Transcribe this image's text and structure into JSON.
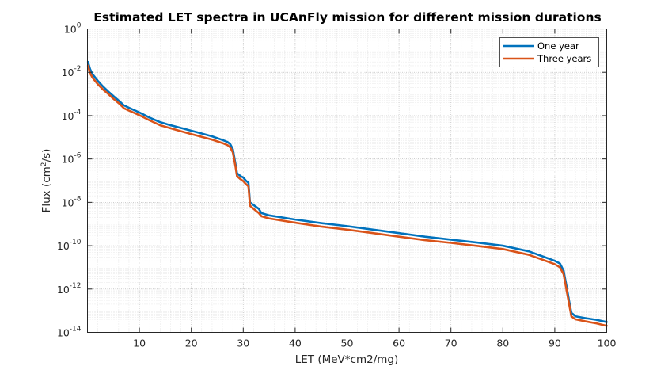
{
  "chart_data": {
    "type": "line",
    "title": "Estimated LET spectra in UCAnFly mission for different mission durations",
    "xlabel": "LET (MeV*cm2/mg)",
    "ylabel_main": "Flux (cm",
    "ylabel_sup": "2",
    "ylabel_tail": "/s)",
    "xlim": [
      0,
      100
    ],
    "ylim": [
      1e-14,
      1
    ],
    "yscale": "log",
    "grid": true,
    "legend_position": "top-right",
    "x_ticks": [
      10,
      20,
      30,
      40,
      50,
      60,
      70,
      80,
      90,
      100
    ],
    "x_tick_labels": [
      "10",
      "20",
      "30",
      "40",
      "50",
      "60",
      "70",
      "80",
      "90",
      "100"
    ],
    "y_ticks": [
      {
        "value": 1,
        "base": "10",
        "exp": "0"
      },
      {
        "value": 0.01,
        "base": "10",
        "exp": "-2"
      },
      {
        "value": 0.0001,
        "base": "10",
        "exp": "-4"
      },
      {
        "value": 1e-06,
        "base": "10",
        "exp": "-6"
      },
      {
        "value": 1e-08,
        "base": "10",
        "exp": "-8"
      },
      {
        "value": 1e-10,
        "base": "10",
        "exp": "-10"
      },
      {
        "value": 1e-12,
        "base": "10",
        "exp": "-12"
      },
      {
        "value": 1e-14,
        "base": "10",
        "exp": "-14"
      }
    ],
    "series": [
      {
        "name": "One year",
        "color": "#0072bd",
        "x": [
          0.1,
          0.5,
          1,
          2,
          3,
          4,
          5,
          6,
          6.8,
          7,
          8,
          10,
          12,
          14,
          16,
          18,
          20,
          22,
          24,
          26,
          27,
          27.5,
          28,
          28.5,
          28.8,
          29.5,
          30,
          30.5,
          31,
          31.3,
          32,
          33,
          33.5,
          35,
          40,
          45,
          50,
          55,
          60,
          65,
          70,
          75,
          80,
          85,
          88,
          90,
          91,
          91.7,
          92.3,
          92.8,
          93.2,
          94,
          96,
          98,
          100
        ],
        "y": [
          0.03,
          0.014,
          0.008,
          0.004,
          0.0022,
          0.0013,
          0.0008,
          0.0005,
          0.00033,
          0.0003,
          0.00023,
          0.00014,
          8e-05,
          5e-05,
          3.6e-05,
          2.7e-05,
          2e-05,
          1.5e-05,
          1.1e-05,
          7.5e-06,
          6e-06,
          4.8e-06,
          2.8e-06,
          6e-07,
          2.2e-07,
          1.6e-07,
          1.4e-07,
          1e-07,
          8e-08,
          1e-08,
          7.5e-09,
          5e-09,
          3.2e-09,
          2.5e-09,
          1.6e-09,
          1.1e-09,
          8e-10,
          5.5e-10,
          3.8e-10,
          2.6e-10,
          1.9e-10,
          1.4e-10,
          1e-10,
          5.5e-11,
          3e-11,
          2e-11,
          1.5e-11,
          7e-12,
          1.2e-12,
          2.5e-13,
          8e-14,
          5.5e-14,
          4.5e-14,
          3.8e-14,
          3e-14
        ]
      },
      {
        "name": "Three years",
        "color": "#d95319",
        "x": [
          0.1,
          0.5,
          1,
          2,
          3,
          4,
          5,
          6,
          6.8,
          7,
          8,
          10,
          12,
          14,
          16,
          18,
          20,
          22,
          24,
          26,
          27,
          27.5,
          28,
          28.5,
          28.8,
          29.5,
          30,
          30.5,
          31,
          31.3,
          32,
          33,
          33.5,
          35,
          40,
          45,
          50,
          55,
          60,
          65,
          70,
          75,
          80,
          85,
          88,
          90,
          91,
          91.7,
          92.3,
          92.8,
          93.2,
          94,
          96,
          98,
          100
        ],
        "y": [
          0.02,
          0.009,
          0.0055,
          0.0028,
          0.0016,
          0.001,
          0.0006,
          0.00038,
          0.00025,
          0.00022,
          0.00017,
          0.000105,
          6e-05,
          3.6e-05,
          2.6e-05,
          1.9e-05,
          1.4e-05,
          1.05e-05,
          7.8e-06,
          5.4e-06,
          4.3e-06,
          3.4e-06,
          2e-06,
          4.5e-07,
          1.6e-07,
          1.15e-07,
          9.5e-08,
          7e-08,
          5.5e-08,
          7e-09,
          5e-09,
          3.2e-09,
          2.3e-09,
          1.8e-09,
          1.15e-09,
          7.6e-10,
          5.5e-10,
          3.8e-10,
          2.6e-10,
          1.8e-10,
          1.35e-10,
          9.8e-11,
          7e-11,
          3.8e-11,
          2.1e-11,
          1.4e-11,
          1e-11,
          4.8e-12,
          8e-13,
          1.8e-13,
          5.5e-14,
          4e-14,
          3.2e-14,
          2.6e-14,
          2e-14
        ]
      }
    ]
  }
}
